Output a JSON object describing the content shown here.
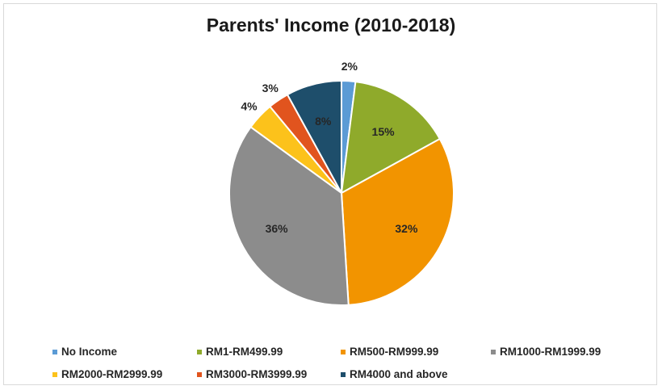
{
  "chart_data": {
    "type": "pie",
    "title": "Parents' Income (2010-2018)",
    "categories": [
      "No Income",
      "RM1-RM499.99",
      "RM500-RM999.99",
      "RM1000-RM1999.99",
      "RM2000-RM2999.99",
      "RM3000-RM3999.99",
      "RM4000 and above"
    ],
    "values": [
      2,
      15,
      32,
      36,
      4,
      3,
      8
    ],
    "labels": [
      "2%",
      "15%",
      "32%",
      "36%",
      "4%",
      "3%",
      "8%"
    ],
    "colors": [
      "#5b9bd5",
      "#8faa2b",
      "#f29400",
      "#8c8c8c",
      "#fcc21b",
      "#e1541e",
      "#1e4e6b"
    ],
    "legend_position": "bottom"
  }
}
